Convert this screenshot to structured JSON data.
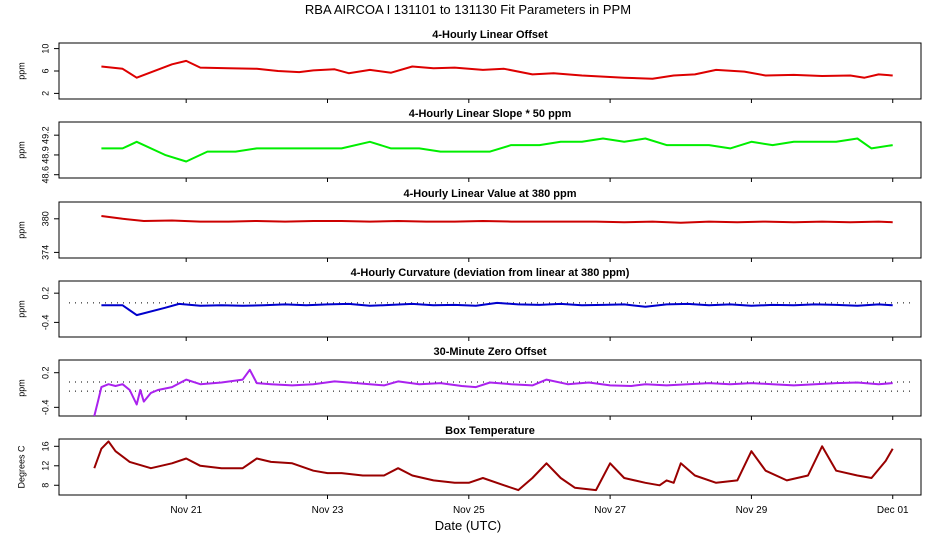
{
  "chart_data": {
    "type": "line",
    "title": "RBA   AIRCOA I   131101 to 131130   Fit Parameters in PPM",
    "xlabel": "Date (UTC)",
    "x_ticks": [
      {
        "label": "Nov 21",
        "day": 21
      },
      {
        "label": "Nov 23",
        "day": 23
      },
      {
        "label": "Nov 25",
        "day": 25
      },
      {
        "label": "Nov 27",
        "day": 27
      },
      {
        "label": "Nov 29",
        "day": 29
      },
      {
        "label": "Dec 01",
        "day": 31
      }
    ],
    "xlim": [
      19.2,
      31.4
    ],
    "panels": [
      {
        "title": "4-Hourly Linear Offset",
        "ylabel": "ppm",
        "color": "#dd0000",
        "ylim": [
          1,
          11
        ],
        "yticks": [
          {
            "v": 2,
            "label": "2"
          },
          {
            "v": 6,
            "label": "6"
          },
          {
            "v": 10,
            "label": "10"
          }
        ],
        "refline": null,
        "x": [
          19.8,
          20.1,
          20.3,
          20.8,
          21.0,
          21.2,
          21.6,
          22.0,
          22.3,
          22.6,
          22.8,
          23.1,
          23.3,
          23.6,
          23.9,
          24.2,
          24.5,
          24.8,
          25.2,
          25.5,
          25.9,
          26.2,
          26.6,
          26.9,
          27.2,
          27.6,
          27.9,
          28.2,
          28.5,
          28.9,
          29.2,
          29.6,
          30.0,
          30.4,
          30.6,
          30.8,
          31.0
        ],
        "y": [
          6.8,
          6.4,
          4.8,
          7.2,
          7.8,
          6.6,
          6.5,
          6.4,
          6.0,
          5.8,
          6.1,
          6.3,
          5.6,
          6.2,
          5.7,
          6.8,
          6.5,
          6.6,
          6.2,
          6.4,
          5.4,
          5.6,
          5.2,
          5.0,
          4.8,
          4.6,
          5.2,
          5.4,
          6.2,
          5.9,
          5.2,
          5.3,
          5.1,
          5.2,
          4.8,
          5.4,
          5.2
        ]
      },
      {
        "title": "4-Hourly Linear Slope * 50 ppm",
        "ylabel": "ppm",
        "color": "#00ee00",
        "ylim": [
          48.55,
          49.4
        ],
        "yticks": [
          {
            "v": 48.6,
            "label": "48.6"
          },
          {
            "v": 48.9,
            "label": "48.9"
          },
          {
            "v": 49.2,
            "label": "49.2"
          }
        ],
        "refline": null,
        "x": [
          19.8,
          20.1,
          20.3,
          20.7,
          21.0,
          21.3,
          21.7,
          22.0,
          22.3,
          22.6,
          22.9,
          23.2,
          23.6,
          23.9,
          24.3,
          24.6,
          24.9,
          25.3,
          25.6,
          26.0,
          26.3,
          26.6,
          26.9,
          27.2,
          27.5,
          27.8,
          28.1,
          28.4,
          28.7,
          29.0,
          29.3,
          29.6,
          29.9,
          30.2,
          30.5,
          30.7,
          31.0
        ],
        "y": [
          49.0,
          49.0,
          49.1,
          48.9,
          48.8,
          48.95,
          48.95,
          49.0,
          49.0,
          49.0,
          49.0,
          49.0,
          49.1,
          49.0,
          49.0,
          48.95,
          48.95,
          48.95,
          49.05,
          49.05,
          49.1,
          49.1,
          49.15,
          49.1,
          49.15,
          49.05,
          49.05,
          49.05,
          49.0,
          49.1,
          49.05,
          49.1,
          49.1,
          49.1,
          49.15,
          49.0,
          49.05
        ]
      },
      {
        "title": "4-Hourly Linear Value at 380 ppm",
        "ylabel": "ppm",
        "color": "#cc0000",
        "ylim": [
          373,
          383
        ],
        "yticks": [
          {
            "v": 374,
            "label": "374"
          },
          {
            "v": 380,
            "label": "380"
          }
        ],
        "refline": null,
        "x": [
          19.8,
          20.1,
          20.4,
          20.8,
          21.2,
          21.6,
          22.0,
          22.4,
          22.8,
          23.2,
          23.6,
          24.0,
          24.4,
          24.8,
          25.2,
          25.6,
          26.0,
          26.4,
          26.8,
          27.2,
          27.6,
          28.0,
          28.4,
          28.8,
          29.2,
          29.6,
          30.0,
          30.4,
          30.8,
          31.0
        ],
        "y": [
          380.5,
          380.0,
          379.6,
          379.7,
          379.5,
          379.5,
          379.6,
          379.5,
          379.6,
          379.6,
          379.5,
          379.6,
          379.5,
          379.5,
          379.6,
          379.5,
          379.5,
          379.5,
          379.5,
          379.4,
          379.5,
          379.3,
          379.5,
          379.4,
          379.5,
          379.4,
          379.5,
          379.4,
          379.5,
          379.4
        ]
      },
      {
        "title": "4-Hourly Curvature (deviation from linear at 380 ppm)",
        "ylabel": "ppm",
        "color": "#0000cc",
        "ylim": [
          -0.7,
          0.45
        ],
        "yticks": [
          {
            "v": -0.4,
            "label": "-0.4"
          },
          {
            "v": 0.2,
            "label": "0.2"
          }
        ],
        "refline": 0.0,
        "x": [
          19.8,
          20.1,
          20.3,
          20.7,
          20.9,
          21.2,
          21.5,
          21.8,
          22.1,
          22.4,
          22.7,
          23.0,
          23.3,
          23.6,
          23.9,
          24.2,
          24.5,
          24.8,
          25.1,
          25.4,
          25.7,
          26.0,
          26.3,
          26.6,
          26.9,
          27.2,
          27.5,
          27.8,
          28.1,
          28.4,
          28.7,
          29.0,
          29.3,
          29.6,
          29.9,
          30.2,
          30.5,
          30.8,
          31.0
        ],
        "y": [
          -0.05,
          -0.05,
          -0.25,
          -0.1,
          -0.02,
          -0.06,
          -0.05,
          -0.06,
          -0.05,
          -0.03,
          -0.05,
          -0.03,
          -0.02,
          -0.06,
          -0.04,
          -0.02,
          -0.05,
          -0.04,
          -0.06,
          0.0,
          -0.03,
          -0.04,
          -0.02,
          -0.05,
          -0.04,
          -0.03,
          -0.08,
          -0.03,
          -0.02,
          -0.05,
          -0.03,
          -0.06,
          -0.04,
          -0.05,
          -0.03,
          -0.04,
          -0.06,
          -0.03,
          -0.05
        ]
      },
      {
        "title": "30-Minute Zero Offset",
        "ylabel": "ppm",
        "color": "#aa22ee",
        "ylim": [
          -0.55,
          0.42
        ],
        "yticks": [
          {
            "v": -0.4,
            "label": "-0.4"
          },
          {
            "v": 0.2,
            "label": "0.2"
          }
        ],
        "refline": 0.04,
        "refline2": -0.12,
        "x": [
          19.7,
          19.75,
          19.8,
          19.9,
          20.0,
          20.1,
          20.2,
          20.3,
          20.35,
          20.4,
          20.5,
          20.6,
          20.8,
          21.0,
          21.2,
          21.5,
          21.8,
          21.9,
          22.0,
          22.2,
          22.5,
          22.8,
          23.1,
          23.3,
          23.6,
          23.8,
          24.0,
          24.3,
          24.6,
          24.9,
          25.1,
          25.3,
          25.6,
          25.9,
          26.1,
          26.4,
          26.7,
          27.0,
          27.3,
          27.5,
          27.8,
          28.1,
          28.4,
          28.7,
          29.0,
          29.3,
          29.6,
          29.9,
          30.2,
          30.5,
          30.8,
          31.0
        ],
        "y": [
          -0.55,
          -0.3,
          -0.05,
          0.0,
          -0.03,
          0.0,
          -0.1,
          -0.35,
          -0.1,
          -0.3,
          -0.15,
          -0.1,
          -0.05,
          0.08,
          0.0,
          0.03,
          0.08,
          0.25,
          0.02,
          0.0,
          -0.02,
          0.0,
          0.05,
          0.03,
          0.0,
          -0.02,
          0.05,
          0.0,
          0.02,
          -0.03,
          -0.05,
          0.03,
          0.0,
          -0.02,
          0.08,
          0.0,
          0.03,
          -0.02,
          -0.03,
          0.0,
          -0.02,
          0.0,
          0.02,
          0.0,
          0.02,
          0.0,
          -0.02,
          0.0,
          0.02,
          0.03,
          0.0,
          0.02
        ]
      },
      {
        "title": "Box Temperature",
        "ylabel": "Degrees C",
        "color": "#990000",
        "ylim": [
          6,
          17.5
        ],
        "yticks": [
          {
            "v": 8,
            "label": "8"
          },
          {
            "v": 12,
            "label": "12"
          },
          {
            "v": 16,
            "label": "16"
          }
        ],
        "refline": null,
        "x": [
          19.7,
          19.8,
          19.9,
          20.0,
          20.2,
          20.5,
          20.8,
          21.0,
          21.2,
          21.5,
          21.8,
          22.0,
          22.2,
          22.5,
          22.8,
          23.0,
          23.2,
          23.5,
          23.8,
          24.0,
          24.2,
          24.5,
          24.8,
          25.0,
          25.2,
          25.5,
          25.7,
          25.9,
          26.1,
          26.3,
          26.5,
          26.8,
          27.0,
          27.2,
          27.5,
          27.7,
          27.8,
          27.9,
          28.0,
          28.2,
          28.5,
          28.8,
          29.0,
          29.2,
          29.5,
          29.8,
          30.0,
          30.2,
          30.5,
          30.7,
          30.9,
          31.0
        ],
        "y": [
          11.5,
          15.5,
          17.0,
          15.0,
          12.8,
          11.5,
          12.5,
          13.5,
          12.0,
          11.5,
          11.5,
          13.5,
          12.8,
          12.5,
          11.0,
          10.5,
          10.5,
          10.0,
          10.0,
          11.5,
          10.0,
          9.0,
          8.5,
          8.5,
          9.5,
          8.0,
          7.0,
          9.5,
          12.5,
          9.5,
          7.5,
          7.0,
          12.5,
          9.5,
          8.5,
          8.0,
          9.0,
          8.5,
          12.5,
          10.0,
          8.5,
          9.0,
          15.0,
          11.0,
          9.0,
          10.0,
          16.0,
          11.0,
          10.0,
          9.5,
          13.0,
          15.5
        ]
      }
    ]
  }
}
